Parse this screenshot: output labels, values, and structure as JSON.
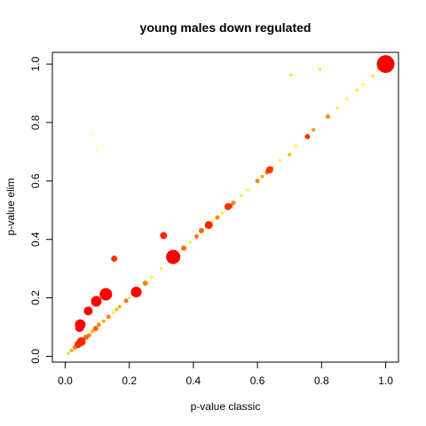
{
  "chart_data": {
    "type": "scatter",
    "title": "young males down regulated",
    "xlabel": "p-value classic",
    "ylabel": "p-value elim",
    "xlim": [
      -0.04,
      1.04
    ],
    "ylim": [
      -0.02,
      1.04
    ],
    "xticks": [
      "0.0",
      "0.2",
      "0.4",
      "0.6",
      "0.8",
      "1.0"
    ],
    "yticks": [
      "0.0",
      "0.2",
      "0.4",
      "0.6",
      "0.8",
      "1.0"
    ],
    "grid": false,
    "legend": "none",
    "point_size_unit": "relative",
    "colors": {
      "red": "#ff0000",
      "orange_red": "#ff3300",
      "orange": "#ff8800",
      "amber": "#ffbb00",
      "yellow": "#ffee00"
    },
    "points": [
      {
        "x": 1.0,
        "y": 1.0,
        "size": 10,
        "color": "#ff0000"
      },
      {
        "x": 0.337,
        "y": 0.34,
        "size": 8,
        "color": "#ff0000"
      },
      {
        "x": 0.127,
        "y": 0.212,
        "size": 7,
        "color": "#ff0000"
      },
      {
        "x": 0.097,
        "y": 0.188,
        "size": 6,
        "color": "#ff0000"
      },
      {
        "x": 0.047,
        "y": 0.108,
        "size": 6,
        "color": "#ff0000"
      },
      {
        "x": 0.045,
        "y": 0.098,
        "size": 5,
        "color": "#ff0000"
      },
      {
        "x": 0.072,
        "y": 0.155,
        "size": 5,
        "color": "#ff0000"
      },
      {
        "x": 0.222,
        "y": 0.22,
        "size": 6,
        "color": "#ff0000"
      },
      {
        "x": 0.216,
        "y": 0.217,
        "size": 4,
        "color": "#ff2200"
      },
      {
        "x": 0.05,
        "y": 0.05,
        "size": 5,
        "color": "#ff2200"
      },
      {
        "x": 0.04,
        "y": 0.04,
        "size": 4,
        "color": "#ff3300"
      },
      {
        "x": 0.448,
        "y": 0.449,
        "size": 4.5,
        "color": "#ff2200"
      },
      {
        "x": 0.307,
        "y": 0.413,
        "size": 4,
        "color": "#ff2200"
      },
      {
        "x": 0.508,
        "y": 0.512,
        "size": 4,
        "color": "#ff3300"
      },
      {
        "x": 0.515,
        "y": 0.515,
        "size": 3,
        "color": "#ff6600"
      },
      {
        "x": 0.638,
        "y": 0.638,
        "size": 4,
        "color": "#ff3300"
      },
      {
        "x": 0.63,
        "y": 0.63,
        "size": 2.5,
        "color": "#ff6600"
      },
      {
        "x": 0.153,
        "y": 0.334,
        "size": 3.5,
        "color": "#ff3300"
      },
      {
        "x": 0.756,
        "y": 0.752,
        "size": 3,
        "color": "#ff3300"
      },
      {
        "x": 0.425,
        "y": 0.43,
        "size": 3,
        "color": "#ff6600"
      },
      {
        "x": 0.41,
        "y": 0.41,
        "size": 2.5,
        "color": "#ff7700"
      },
      {
        "x": 0.37,
        "y": 0.37,
        "size": 3,
        "color": "#ff6600"
      },
      {
        "x": 0.475,
        "y": 0.475,
        "size": 2.5,
        "color": "#ff8800"
      },
      {
        "x": 0.525,
        "y": 0.525,
        "size": 2.5,
        "color": "#ff8800"
      },
      {
        "x": 0.6,
        "y": 0.6,
        "size": 2.5,
        "color": "#ff8800"
      },
      {
        "x": 0.615,
        "y": 0.615,
        "size": 2,
        "color": "#ffaa00"
      },
      {
        "x": 0.645,
        "y": 0.645,
        "size": 2,
        "color": "#ffaa00"
      },
      {
        "x": 0.25,
        "y": 0.25,
        "size": 3,
        "color": "#ff8800"
      },
      {
        "x": 0.19,
        "y": 0.19,
        "size": 2.5,
        "color": "#ff7700"
      },
      {
        "x": 0.17,
        "y": 0.17,
        "size": 2,
        "color": "#ffaa00"
      },
      {
        "x": 0.16,
        "y": 0.16,
        "size": 2,
        "color": "#ffbb00"
      },
      {
        "x": 0.135,
        "y": 0.135,
        "size": 2.5,
        "color": "#ff8800"
      },
      {
        "x": 0.12,
        "y": 0.12,
        "size": 2,
        "color": "#ffaa00"
      },
      {
        "x": 0.105,
        "y": 0.108,
        "size": 2.5,
        "color": "#ff8800"
      },
      {
        "x": 0.095,
        "y": 0.095,
        "size": 3,
        "color": "#ff6600"
      },
      {
        "x": 0.085,
        "y": 0.085,
        "size": 2,
        "color": "#ffaa00"
      },
      {
        "x": 0.075,
        "y": 0.072,
        "size": 2.5,
        "color": "#ff8800"
      },
      {
        "x": 0.065,
        "y": 0.065,
        "size": 3,
        "color": "#ff6600"
      },
      {
        "x": 0.03,
        "y": 0.03,
        "size": 2.5,
        "color": "#ff8800"
      },
      {
        "x": 0.02,
        "y": 0.02,
        "size": 2,
        "color": "#ffaa00"
      },
      {
        "x": 0.01,
        "y": 0.01,
        "size": 1.5,
        "color": "#ffcc00"
      },
      {
        "x": 0.7,
        "y": 0.69,
        "size": 2,
        "color": "#ffbb00"
      },
      {
        "x": 0.775,
        "y": 0.775,
        "size": 2,
        "color": "#ff9900"
      },
      {
        "x": 0.82,
        "y": 0.82,
        "size": 2.5,
        "color": "#ff8800"
      },
      {
        "x": 0.91,
        "y": 0.91,
        "size": 1.5,
        "color": "#ffdd00"
      },
      {
        "x": 0.96,
        "y": 0.96,
        "size": 1.5,
        "color": "#ffdd00"
      },
      {
        "x": 0.98,
        "y": 0.985,
        "size": 2,
        "color": "#ffbb00"
      },
      {
        "x": 0.705,
        "y": 0.963,
        "size": 1.5,
        "color": "#ffdd00"
      },
      {
        "x": 0.795,
        "y": 0.982,
        "size": 1.5,
        "color": "#ffdd00"
      },
      {
        "x": 0.08,
        "y": 0.76,
        "size": 1,
        "color": "#ffee00"
      },
      {
        "x": 0.1,
        "y": 0.71,
        "size": 1,
        "color": "#ffee00"
      },
      {
        "x": 0.55,
        "y": 0.55,
        "size": 1.5,
        "color": "#ffee00"
      },
      {
        "x": 0.57,
        "y": 0.57,
        "size": 1.5,
        "color": "#ffee00"
      },
      {
        "x": 0.67,
        "y": 0.67,
        "size": 1.5,
        "color": "#ffee00"
      },
      {
        "x": 0.72,
        "y": 0.72,
        "size": 1.5,
        "color": "#ffee00"
      },
      {
        "x": 0.85,
        "y": 0.85,
        "size": 1.5,
        "color": "#ffee00"
      },
      {
        "x": 0.88,
        "y": 0.88,
        "size": 1.5,
        "color": "#ffee00"
      },
      {
        "x": 0.93,
        "y": 0.93,
        "size": 1.5,
        "color": "#ffee00"
      },
      {
        "x": 0.27,
        "y": 0.27,
        "size": 1.5,
        "color": "#ffee00"
      },
      {
        "x": 0.3,
        "y": 0.3,
        "size": 1.5,
        "color": "#ffee00"
      },
      {
        "x": 0.39,
        "y": 0.39,
        "size": 1.5,
        "color": "#ffee00"
      },
      {
        "x": 0.46,
        "y": 0.46,
        "size": 1.5,
        "color": "#ffee00"
      },
      {
        "x": 0.49,
        "y": 0.49,
        "size": 1.5,
        "color": "#ffee00"
      },
      {
        "x": 0.35,
        "y": 0.35,
        "size": 1.5,
        "color": "#ffee00"
      },
      {
        "x": 0.2,
        "y": 0.2,
        "size": 1.5,
        "color": "#ffdd00"
      },
      {
        "x": 0.15,
        "y": 0.15,
        "size": 1.5,
        "color": "#ffdd00"
      },
      {
        "x": 0.055,
        "y": 0.055,
        "size": 1.5,
        "color": "#ffdd00"
      }
    ]
  }
}
